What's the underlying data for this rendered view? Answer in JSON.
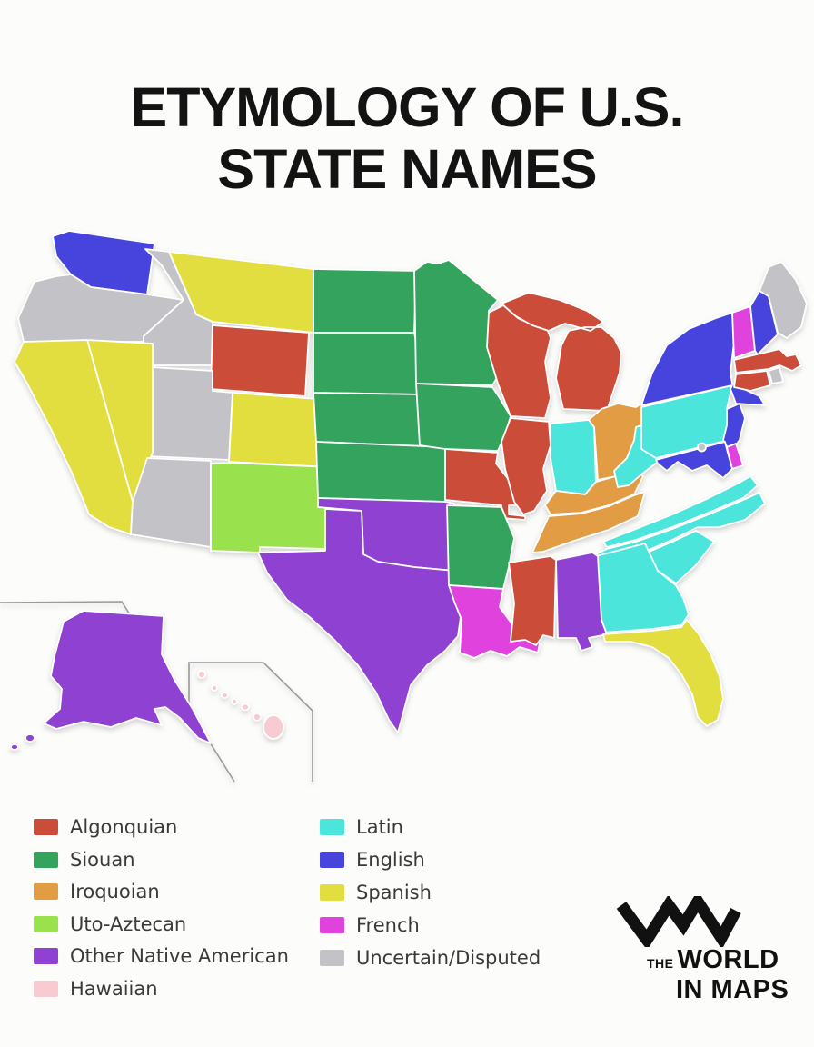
{
  "title": {
    "lines": [
      "ETYMOLOGY OF U.S.",
      "STATE NAMES"
    ]
  },
  "categories": {
    "algonquian": {
      "label": "Algonquian",
      "color": "#CC4C3A"
    },
    "siouan": {
      "label": "Siouan",
      "color": "#33A35D"
    },
    "iroquoian": {
      "label": "Iroquoian",
      "color": "#E29D44"
    },
    "uto_aztecan": {
      "label": "Uto-Aztecan",
      "color": "#99E14D"
    },
    "other_native": {
      "label": "Other Native American",
      "color": "#8F41D2"
    },
    "hawaiian": {
      "label": "Hawaiian",
      "color": "#F7CBD1"
    },
    "latin": {
      "label": "Latin",
      "color": "#4CE5DC"
    },
    "english": {
      "label": "English",
      "color": "#4744DD"
    },
    "spanish": {
      "label": "Spanish",
      "color": "#E2DE40"
    },
    "french": {
      "label": "French",
      "color": "#E042DE"
    },
    "uncertain": {
      "label": "Uncertain/Disputed",
      "color": "#C3C3C7"
    }
  },
  "legend": {
    "left_order": [
      "algonquian",
      "siouan",
      "iroquoian",
      "uto_aztecan",
      "other_native",
      "hawaiian"
    ],
    "right_order": [
      "latin",
      "english",
      "spanish",
      "french",
      "uncertain"
    ]
  },
  "map": {
    "states": [
      {
        "id": "WA",
        "name": "Washington",
        "category": "english"
      },
      {
        "id": "OR",
        "name": "Oregon",
        "category": "uncertain"
      },
      {
        "id": "ID",
        "name": "Idaho",
        "category": "uncertain"
      },
      {
        "id": "MT",
        "name": "Montana",
        "category": "spanish"
      },
      {
        "id": "WY",
        "name": "Wyoming",
        "category": "algonquian"
      },
      {
        "id": "UT",
        "name": "Utah",
        "category": "uncertain"
      },
      {
        "id": "CO",
        "name": "Colorado",
        "category": "spanish"
      },
      {
        "id": "NV",
        "name": "Nevada",
        "category": "spanish"
      },
      {
        "id": "CA",
        "name": "California",
        "category": "spanish"
      },
      {
        "id": "AZ",
        "name": "Arizona",
        "category": "uncertain"
      },
      {
        "id": "NM",
        "name": "New Mexico",
        "category": "uto_aztecan"
      },
      {
        "id": "ND",
        "name": "North Dakota",
        "category": "siouan"
      },
      {
        "id": "SD",
        "name": "South Dakota",
        "category": "siouan"
      },
      {
        "id": "NE",
        "name": "Nebraska",
        "category": "siouan"
      },
      {
        "id": "KS",
        "name": "Kansas",
        "category": "siouan"
      },
      {
        "id": "OK",
        "name": "Oklahoma",
        "category": "other_native"
      },
      {
        "id": "TX",
        "name": "Texas",
        "category": "other_native"
      },
      {
        "id": "MN",
        "name": "Minnesota",
        "category": "siouan"
      },
      {
        "id": "IA",
        "name": "Iowa",
        "category": "siouan"
      },
      {
        "id": "MO",
        "name": "Missouri",
        "category": "algonquian"
      },
      {
        "id": "AR",
        "name": "Arkansas",
        "category": "siouan"
      },
      {
        "id": "LA",
        "name": "Louisiana",
        "category": "french"
      },
      {
        "id": "WI",
        "name": "Wisconsin",
        "category": "algonquian"
      },
      {
        "id": "MI",
        "name": "Michigan",
        "category": "algonquian"
      },
      {
        "id": "IL",
        "name": "Illinois",
        "category": "algonquian"
      },
      {
        "id": "IN",
        "name": "Indiana",
        "category": "latin"
      },
      {
        "id": "OH",
        "name": "Ohio",
        "category": "iroquoian"
      },
      {
        "id": "KY",
        "name": "Kentucky",
        "category": "iroquoian"
      },
      {
        "id": "TN",
        "name": "Tennessee",
        "category": "iroquoian"
      },
      {
        "id": "WV",
        "name": "West Virginia",
        "category": "latin"
      },
      {
        "id": "VA",
        "name": "Virginia",
        "category": "latin"
      },
      {
        "id": "NC",
        "name": "North Carolina",
        "category": "latin"
      },
      {
        "id": "SC",
        "name": "South Carolina",
        "category": "latin"
      },
      {
        "id": "GA",
        "name": "Georgia",
        "category": "latin"
      },
      {
        "id": "AL",
        "name": "Alabama",
        "category": "other_native"
      },
      {
        "id": "MS",
        "name": "Mississippi",
        "category": "algonquian"
      },
      {
        "id": "FL",
        "name": "Florida",
        "category": "spanish"
      },
      {
        "id": "PA",
        "name": "Pennsylvania",
        "category": "latin"
      },
      {
        "id": "NY",
        "name": "New York",
        "category": "english"
      },
      {
        "id": "VT",
        "name": "Vermont",
        "category": "french"
      },
      {
        "id": "NH",
        "name": "New Hampshire",
        "category": "english"
      },
      {
        "id": "ME",
        "name": "Maine",
        "category": "uncertain"
      },
      {
        "id": "MA",
        "name": "Massachusetts",
        "category": "algonquian"
      },
      {
        "id": "RI",
        "name": "Rhode Island",
        "category": "uncertain"
      },
      {
        "id": "CT",
        "name": "Connecticut",
        "category": "algonquian"
      },
      {
        "id": "NJ",
        "name": "New Jersey",
        "category": "english"
      },
      {
        "id": "DE",
        "name": "Delaware",
        "category": "french"
      },
      {
        "id": "MD",
        "name": "Maryland",
        "category": "english"
      },
      {
        "id": "AK",
        "name": "Alaska",
        "category": "other_native"
      },
      {
        "id": "HI",
        "name": "Hawaii",
        "category": "hawaiian"
      },
      {
        "id": "DC",
        "name": "Washington D.C.",
        "category": "uncertain"
      }
    ]
  },
  "logo": {
    "the": "THE",
    "word1": "WORLD",
    "word2": "IN MAPS"
  }
}
